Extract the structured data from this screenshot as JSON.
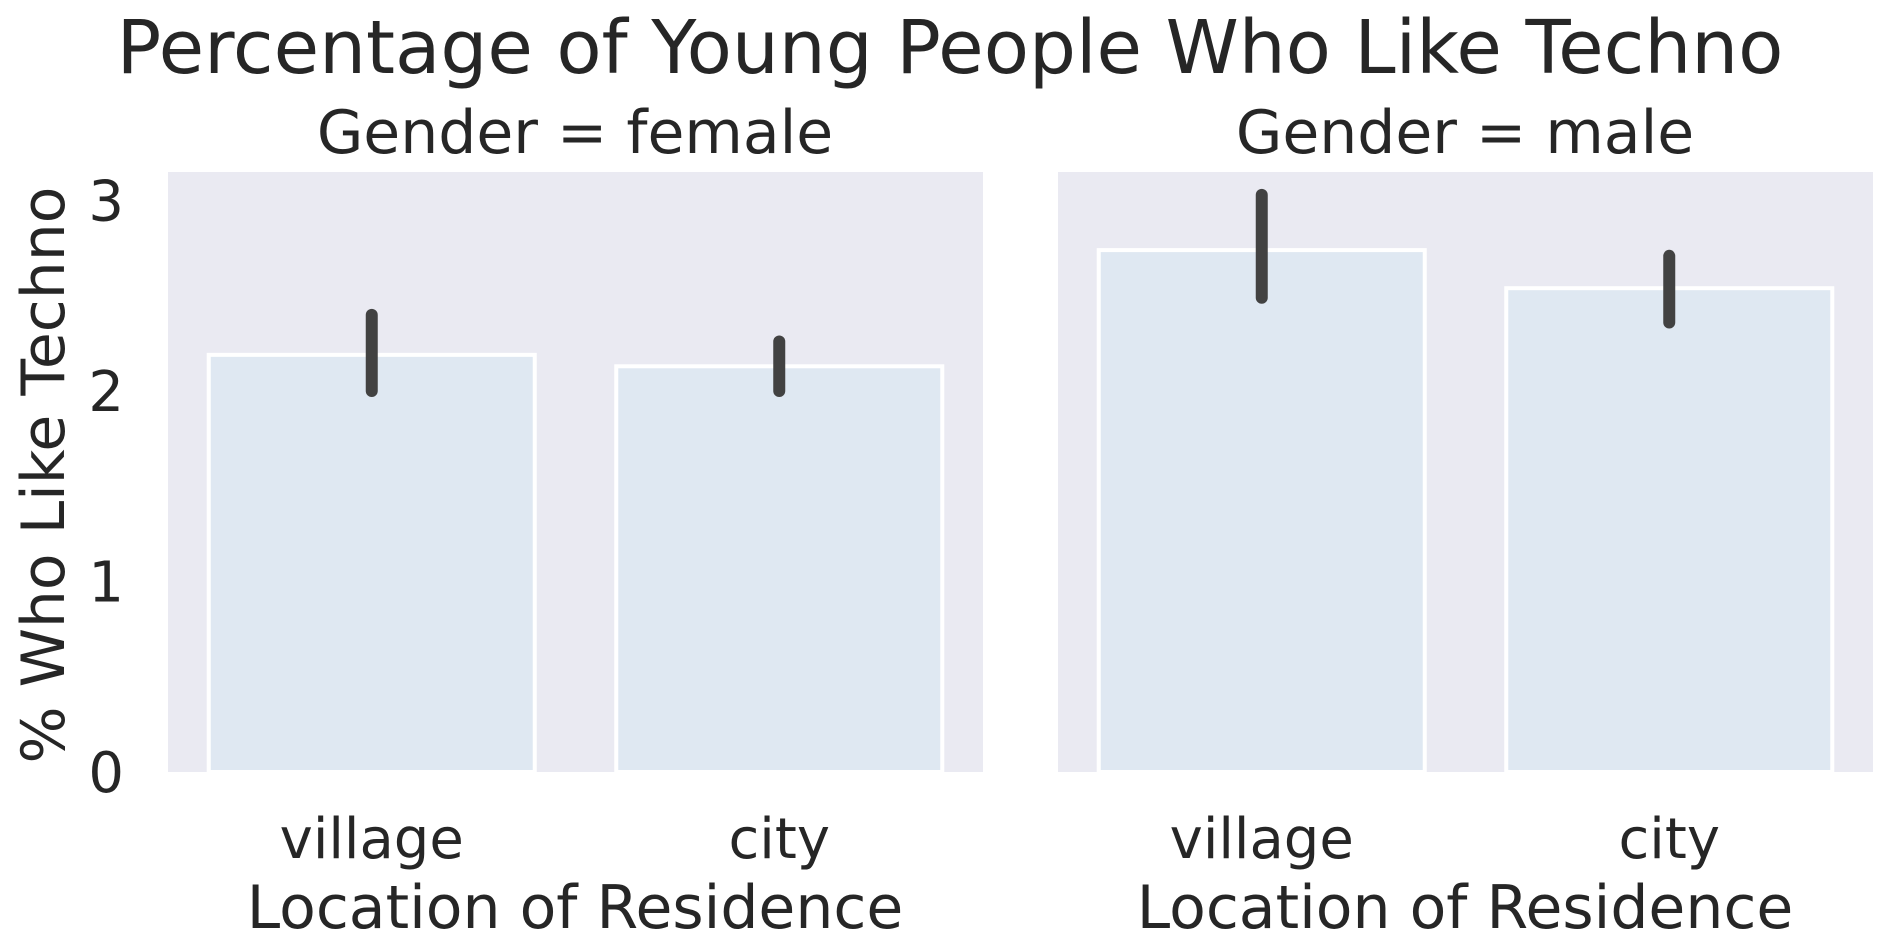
{
  "chart_data": {
    "type": "bar",
    "title": "Percentage of Young People Who Like Techno",
    "ylabel": "% Who Like Techno",
    "ylim": [
      0,
      3.15
    ],
    "yticks": [
      "0",
      "1",
      "2",
      "3"
    ],
    "grid": false,
    "colors": {
      "bar": "#dfe8f2",
      "panel_background": "#eaeaf2",
      "error_bar": "#424242",
      "bar_edge": "#ffffff"
    },
    "panels": [
      {
        "title": "Gender = female",
        "xlabel": "Location of Residence",
        "categories": [
          "village",
          "city"
        ],
        "values": [
          2.19,
          2.13
        ],
        "error_low": [
          2.0,
          2.0
        ],
        "error_high": [
          2.4,
          2.26
        ]
      },
      {
        "title": "Gender = male",
        "xlabel": "Location of Residence",
        "categories": [
          "village",
          "city"
        ],
        "values": [
          2.74,
          2.54
        ],
        "error_low": [
          2.49,
          2.36
        ],
        "error_high": [
          3.03,
          2.71
        ]
      }
    ]
  }
}
